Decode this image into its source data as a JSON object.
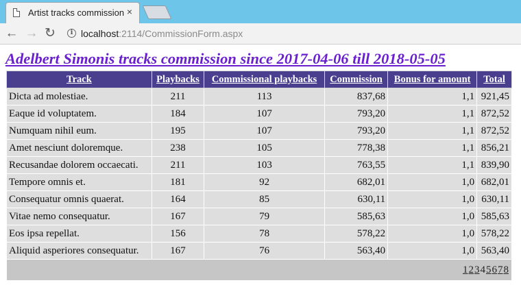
{
  "browser": {
    "tab_title": "Artist tracks commission",
    "tab_close": "×",
    "url_host": "localhost",
    "url_path": ":2114/CommissionForm.aspx"
  },
  "page": {
    "heading": "Adelbert Simonis tracks commission since 2017-04-06 till 2018-05-05"
  },
  "table": {
    "headers": [
      "Track",
      "Playbacks",
      "Commissional playbacks",
      "Commission",
      "Bonus for amount",
      "Total"
    ],
    "rows": [
      [
        "Dicta ad molestiae.",
        "211",
        "113",
        "837,68",
        "1,1",
        "921,45"
      ],
      [
        "Eaque id voluptatem.",
        "184",
        "107",
        "793,20",
        "1,1",
        "872,52"
      ],
      [
        "Numquam nihil eum.",
        "195",
        "107",
        "793,20",
        "1,1",
        "872,52"
      ],
      [
        "Amet nesciunt doloremque.",
        "238",
        "105",
        "778,38",
        "1,1",
        "856,21"
      ],
      [
        "Recusandae dolorem occaecati.",
        "211",
        "103",
        "763,55",
        "1,1",
        "839,90"
      ],
      [
        "Tempore omnis et.",
        "181",
        "92",
        "682,01",
        "1,0",
        "682,01"
      ],
      [
        "Consequatur omnis quaerat.",
        "164",
        "85",
        "630,11",
        "1,0",
        "630,11"
      ],
      [
        "Vitae nemo consequatur.",
        "167",
        "79",
        "585,63",
        "1,0",
        "585,63"
      ],
      [
        "Eos ipsa repellat.",
        "156",
        "78",
        "578,22",
        "1,0",
        "578,22"
      ],
      [
        "Aliquid asperiores consequatur.",
        "167",
        "76",
        "563,40",
        "1,0",
        "563,40"
      ]
    ],
    "pager": [
      "1",
      "2",
      "3",
      "4",
      "5",
      "6",
      "7",
      "8"
    ],
    "current_page": "4"
  },
  "colors": {
    "header_bg": "#4a3f8f",
    "heading": "#6a1fcf",
    "row_bg": "#dedede",
    "pager_bg": "#c6c6c6",
    "tabstrip": "#6ec5ea"
  },
  "icons": [
    "page-icon",
    "close-icon",
    "back-arrow-icon",
    "forward-arrow-icon",
    "reload-icon",
    "info-icon"
  ]
}
